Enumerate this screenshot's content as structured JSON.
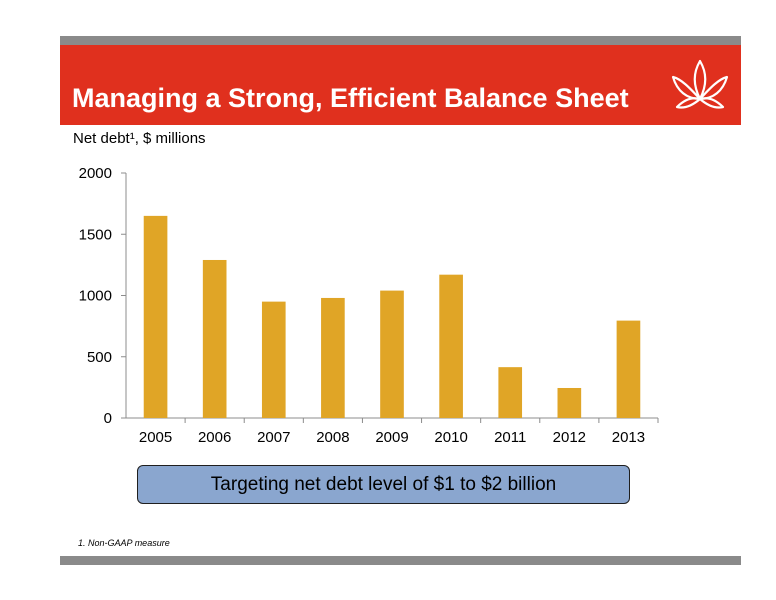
{
  "header": {
    "title": "Managing a Strong, Efficient Balance Sheet",
    "logo_icon": "lotus-logo-icon",
    "banner_color": "#e0301e"
  },
  "subtitle": "Net debt¹, $ millions",
  "callout": "Targeting net debt level of $1 to $2 billion",
  "footnote": "1.   Non-GAAP measure",
  "chart_data": {
    "type": "bar",
    "categories": [
      "2005",
      "2006",
      "2007",
      "2008",
      "2009",
      "2010",
      "2011",
      "2012",
      "2013"
    ],
    "values": [
      1650,
      1290,
      950,
      980,
      1040,
      1170,
      415,
      245,
      795
    ],
    "ylim": [
      0,
      2000
    ],
    "yticks": [
      0,
      500,
      1000,
      1500,
      2000
    ],
    "bar_color": "#e0a526",
    "grid": false,
    "legend": "none"
  }
}
